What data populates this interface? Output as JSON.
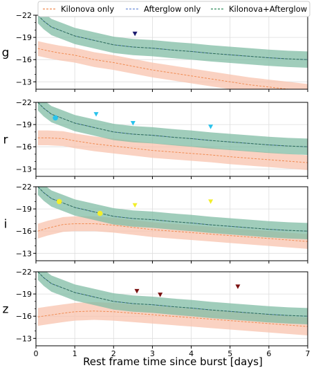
{
  "chart_data": {
    "type": "line",
    "xlabel": "Rest frame time since burst [days]",
    "xlim": [
      0,
      7
    ],
    "ylim": [
      -22,
      -12
    ],
    "xticks": [
      "0",
      "1",
      "2",
      "3",
      "4",
      "5",
      "6",
      "7"
    ],
    "yticks": [
      "-22",
      "-19",
      "-16",
      "-13"
    ],
    "grid": true,
    "legend": {
      "placement": "top",
      "entries": [
        {
          "label": "Kilonova only",
          "color": "#f08a50",
          "style": "dashed"
        },
        {
          "label": "Afterglow only",
          "color": "#6a8cd8",
          "style": "dashed"
        },
        {
          "label": "Kilonova+Afterglow",
          "color": "#2f8a5a",
          "style": "dashed"
        }
      ]
    },
    "colors": {
      "kilonova_line": "#f08a50",
      "kilonova_band": "#f8c3ad",
      "combined_line": "#2f6f55",
      "combined_band": "#80bca4",
      "afterglow_line": "#6a8cd8"
    },
    "panels": [
      {
        "band": "g",
        "kilonova": {
          "x": [
            0.05,
            0.3,
            0.6,
            1,
            1.5,
            2,
            2.5,
            3,
            3.5,
            4,
            4.5,
            5,
            5.5,
            6,
            6.5,
            7
          ],
          "y": [
            -17.5,
            -17.2,
            -16.9,
            -16.6,
            -16.0,
            -15.6,
            -15.1,
            -14.6,
            -14.2,
            -13.8,
            -13.4,
            -13.0,
            -12.6,
            -12.3,
            -12.0,
            -11.7
          ],
          "err": 1.0
        },
        "combined": {
          "x": [
            0.05,
            0.2,
            0.4,
            0.7,
            1.0,
            1.5,
            2.0,
            2.5,
            3.0,
            3.5,
            4.0,
            4.5,
            5.0,
            5.5,
            6.0,
            6.5,
            7.0
          ],
          "y": [
            -22.0,
            -21.2,
            -20.4,
            -19.8,
            -19.2,
            -18.6,
            -18.0,
            -17.7,
            -17.55,
            -17.3,
            -17.1,
            -16.85,
            -16.65,
            -16.45,
            -16.25,
            -16.1,
            -16.0
          ],
          "err": 1.1
        },
        "detections": [],
        "upper_limits": [
          {
            "x": 2.55,
            "y": -19.5,
            "color": "#1a1a6e"
          }
        ]
      },
      {
        "band": "r",
        "kilonova": {
          "x": [
            0.05,
            0.3,
            0.7,
            1,
            1.5,
            2,
            2.5,
            3,
            3.5,
            4,
            4.5,
            5,
            5.5,
            6,
            6.5,
            7
          ],
          "y": [
            -17.2,
            -17.2,
            -17.1,
            -16.8,
            -16.4,
            -16.1,
            -15.8,
            -15.5,
            -15.3,
            -15.1,
            -14.9,
            -14.65,
            -14.45,
            -14.25,
            -14.05,
            -13.85
          ],
          "err": 1.0
        },
        "combined": {
          "x": [
            0.05,
            0.2,
            0.4,
            0.7,
            1.0,
            1.5,
            2.0,
            2.5,
            3.0,
            3.5,
            4.0,
            4.5,
            5.0,
            5.5,
            6.0,
            6.5,
            7.0
          ],
          "y": [
            -22.0,
            -21.2,
            -20.4,
            -19.8,
            -19.2,
            -18.6,
            -18.0,
            -17.7,
            -17.55,
            -17.3,
            -17.1,
            -16.85,
            -16.65,
            -16.45,
            -16.25,
            -16.1,
            -16.0
          ],
          "err": 1.1
        },
        "detections": [
          {
            "x": 0.5,
            "y": -19.9,
            "color": "#29c3ec"
          }
        ],
        "upper_limits": [
          {
            "x": 1.55,
            "y": -20.4,
            "color": "#29c3ec"
          },
          {
            "x": 2.5,
            "y": -19.2,
            "color": "#29c3ec"
          },
          {
            "x": 4.5,
            "y": -18.7,
            "color": "#29c3ec"
          }
        ]
      },
      {
        "band": "i",
        "kilonova": {
          "x": [
            0.05,
            0.3,
            0.7,
            1,
            1.5,
            2,
            2.5,
            3,
            3.5,
            4,
            4.5,
            5,
            5.5,
            6,
            6.5,
            7
          ],
          "y": [
            -16.0,
            -16.4,
            -16.9,
            -17.0,
            -17.0,
            -16.8,
            -16.5,
            -16.2,
            -16.0,
            -15.8,
            -15.6,
            -15.4,
            -15.2,
            -15.0,
            -14.8,
            -14.6
          ],
          "err": 1.0
        },
        "combined": {
          "x": [
            0.05,
            0.2,
            0.4,
            0.7,
            1.0,
            1.5,
            2.0,
            2.5,
            3.0,
            3.5,
            4.0,
            4.5,
            5.0,
            5.5,
            6.0,
            6.5,
            7.0
          ],
          "y": [
            -22.0,
            -21.2,
            -20.4,
            -19.8,
            -19.2,
            -18.6,
            -18.0,
            -17.7,
            -17.55,
            -17.3,
            -17.1,
            -16.85,
            -16.65,
            -16.45,
            -16.25,
            -16.1,
            -16.0
          ],
          "err": 1.1
        },
        "detections": [
          {
            "x": 0.6,
            "y": -20.0,
            "color": "#f2ee2a"
          },
          {
            "x": 1.65,
            "y": -18.4,
            "color": "#f2ee2a"
          }
        ],
        "upper_limits": [
          {
            "x": 2.55,
            "y": -19.5,
            "color": "#f2ee2a"
          },
          {
            "x": 4.5,
            "y": -20.0,
            "color": "#f2ee2a"
          }
        ]
      },
      {
        "band": "z",
        "kilonova": {
          "x": [
            0.05,
            0.3,
            0.7,
            1,
            1.5,
            2,
            2.5,
            3,
            3.5,
            4,
            4.5,
            5,
            5.5,
            6,
            6.5,
            7
          ],
          "y": [
            -15.9,
            -16.1,
            -16.4,
            -16.6,
            -16.7,
            -16.6,
            -16.4,
            -16.2,
            -16.0,
            -15.8,
            -15.6,
            -15.4,
            -15.2,
            -15.0,
            -14.8,
            -14.6
          ],
          "err": 1.2
        },
        "combined": {
          "x": [
            0.05,
            0.2,
            0.4,
            0.7,
            1.0,
            1.5,
            2.0,
            2.5,
            3.0,
            3.5,
            4.0,
            4.5,
            5.0,
            5.5,
            6.0,
            6.5,
            7.0
          ],
          "y": [
            -22.0,
            -21.2,
            -20.4,
            -19.8,
            -19.2,
            -18.6,
            -18.0,
            -17.7,
            -17.55,
            -17.3,
            -17.1,
            -16.85,
            -16.65,
            -16.45,
            -16.25,
            -16.1,
            -16.0
          ],
          "err": 1.1
        },
        "detections": [],
        "upper_limits": [
          {
            "x": 2.6,
            "y": -19.4,
            "color": "#7a1010"
          },
          {
            "x": 3.2,
            "y": -18.9,
            "color": "#7a1010"
          },
          {
            "x": 5.2,
            "y": -20.0,
            "color": "#7a1010"
          }
        ]
      }
    ]
  }
}
